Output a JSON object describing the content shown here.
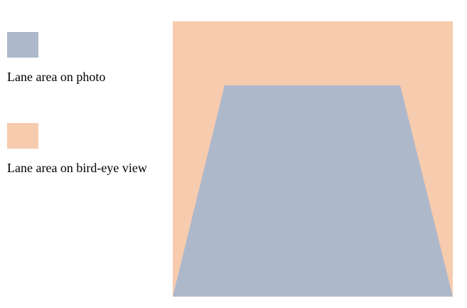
{
  "colors": {
    "photo_area": "#adb8cb",
    "birdeye_area": "#f7cbae",
    "background": "#ffffff",
    "text": "#000000"
  },
  "legend": {
    "photo_label": "Lane area on photo",
    "birdeye_label": "Lane area on bird-eye view"
  }
}
